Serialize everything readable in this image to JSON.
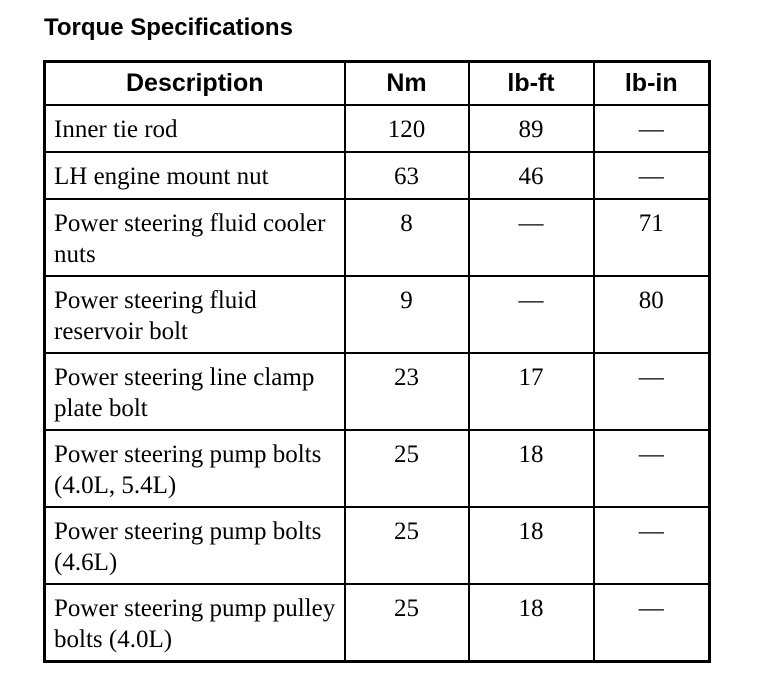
{
  "title": "Torque Specifications",
  "table": {
    "headers": [
      "Description",
      "Nm",
      "lb-ft",
      "lb-in"
    ],
    "rows": [
      {
        "description": "Inner tie rod",
        "nm": "120",
        "lbft": "89",
        "lbin": "—"
      },
      {
        "description": "LH engine mount nut",
        "nm": "63",
        "lbft": "46",
        "lbin": "—"
      },
      {
        "description": "Power steering fluid cooler nuts",
        "nm": "8",
        "lbft": "—",
        "lbin": "71"
      },
      {
        "description": "Power steering fluid reservoir bolt",
        "nm": "9",
        "lbft": "—",
        "lbin": "80"
      },
      {
        "description": "Power steering line clamp plate bolt",
        "nm": "23",
        "lbft": "17",
        "lbin": "—"
      },
      {
        "description": "Power steering pump bolts (4.0L, 5.4L)",
        "nm": "25",
        "lbft": "18",
        "lbin": "—"
      },
      {
        "description": "Power steering pump bolts (4.6L)",
        "nm": "25",
        "lbft": "18",
        "lbin": "—"
      },
      {
        "description": "Power steering pump pulley bolts (4.0L)",
        "nm": "25",
        "lbft": "18",
        "lbin": "—"
      }
    ]
  }
}
